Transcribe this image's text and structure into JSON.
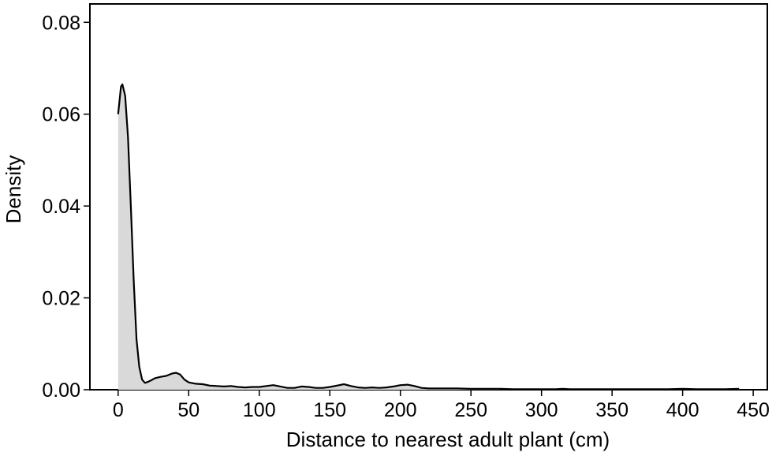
{
  "chart_data": {
    "type": "area",
    "title": "",
    "xlabel": "Distance to nearest adult plant (cm)",
    "ylabel": "Density",
    "xlim": [
      -20,
      460
    ],
    "ylim": [
      0,
      0.084
    ],
    "xticks": [
      0,
      50,
      100,
      150,
      200,
      250,
      300,
      350,
      400,
      450
    ],
    "yticks": [
      0.0,
      0.02,
      0.04,
      0.06,
      0.08
    ],
    "xtick_labels": [
      "0",
      "50",
      "100",
      "150",
      "200",
      "250",
      "300",
      "350",
      "400",
      "450"
    ],
    "ytick_labels": [
      "0.00",
      "0.02",
      "0.04",
      "0.06",
      "0.08"
    ],
    "grid": false,
    "legend": "none",
    "fill_color": "#d9d9d9",
    "line_color": "#000000",
    "series": [
      {
        "x": [
          0,
          2,
          3,
          5,
          7,
          9,
          11,
          13,
          15,
          17,
          19,
          21,
          23,
          26,
          30,
          34,
          38,
          41,
          44,
          47,
          50,
          55,
          60,
          65,
          70,
          75,
          80,
          85,
          90,
          95,
          100,
          105,
          110,
          115,
          120,
          125,
          130,
          135,
          140,
          145,
          150,
          155,
          160,
          165,
          170,
          175,
          180,
          185,
          190,
          195,
          200,
          205,
          210,
          215,
          220,
          230,
          240,
          250,
          260,
          270,
          280,
          290,
          300,
          310,
          315,
          320,
          330,
          340,
          350,
          360,
          370,
          380,
          390,
          400,
          410,
          420,
          430,
          440
        ],
        "y": [
          0.06,
          0.066,
          0.0665,
          0.064,
          0.055,
          0.04,
          0.024,
          0.011,
          0.005,
          0.0022,
          0.0015,
          0.0017,
          0.002,
          0.0025,
          0.0028,
          0.003,
          0.0035,
          0.0037,
          0.0033,
          0.0022,
          0.0016,
          0.0013,
          0.0012,
          0.0009,
          0.0008,
          0.0007,
          0.0008,
          0.0006,
          0.0005,
          0.0006,
          0.0006,
          0.0008,
          0.001,
          0.0007,
          0.0004,
          0.0004,
          0.0007,
          0.0006,
          0.0004,
          0.0004,
          0.0006,
          0.0009,
          0.0012,
          0.0008,
          0.0005,
          0.0004,
          0.0005,
          0.0004,
          0.0005,
          0.0007,
          0.001,
          0.0011,
          0.0008,
          0.0004,
          0.0003,
          0.0003,
          0.0003,
          0.0002,
          0.0002,
          0.0002,
          0.0001,
          0.0001,
          0.0001,
          0.0001,
          0.0002,
          0.0001,
          0.0001,
          0.0001,
          0.0001,
          0.0001,
          0.0001,
          0.0001,
          0.0001,
          0.0002,
          0.0001,
          0.0001,
          0.0001,
          0.0002
        ]
      }
    ]
  }
}
